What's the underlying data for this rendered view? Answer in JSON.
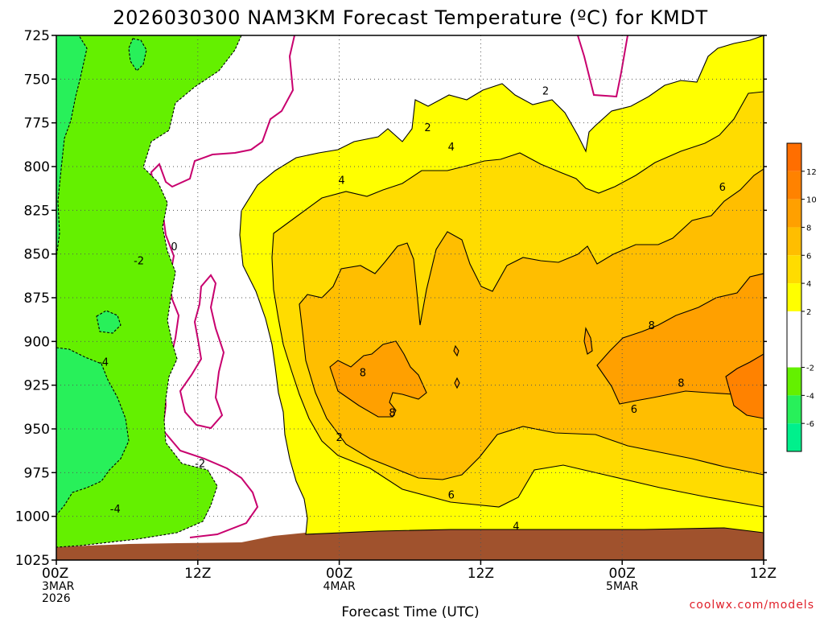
{
  "chart_data": {
    "type": "heatmap",
    "title": "2026030300 NAM3KM Forecast Temperature (ºC) for KMDT",
    "xlabel": "Forecast Time (UTC)",
    "ylabel": "",
    "y_axis": {
      "unit": "hPa",
      "range": [
        725,
        1025
      ],
      "inverted": true,
      "ticks": [
        "725",
        "750",
        "775",
        "800",
        "825",
        "850",
        "875",
        "900",
        "925",
        "950",
        "975",
        "1000",
        "1025"
      ]
    },
    "x_axis": {
      "range_hours": [
        0,
        60
      ],
      "ticks": [
        {
          "hour": 0,
          "lines": [
            "00Z",
            "3MAR",
            "2026"
          ]
        },
        {
          "hour": 12,
          "lines": [
            "12Z"
          ]
        },
        {
          "hour": 24,
          "lines": [
            "00Z",
            "4MAR"
          ]
        },
        {
          "hour": 36,
          "lines": [
            "12Z"
          ]
        },
        {
          "hour": 48,
          "lines": [
            "00Z",
            "5MAR"
          ]
        },
        {
          "hour": 60,
          "lines": [
            "12Z"
          ]
        }
      ]
    },
    "grid": true,
    "colorbar": {
      "placement": "right",
      "bins": [
        {
          "from": -8,
          "to": -6,
          "color": "#00f08c"
        },
        {
          "from": -6,
          "to": -4,
          "color": "#28f05a"
        },
        {
          "from": -4,
          "to": -2,
          "color": "#64f000"
        },
        {
          "from": -2,
          "to": 0,
          "color": "#ffffff"
        },
        {
          "from": 0,
          "to": 2,
          "color": "#ffffff"
        },
        {
          "from": 2,
          "to": 4,
          "color": "#ffff00"
        },
        {
          "from": 4,
          "to": 6,
          "color": "#ffdc00"
        },
        {
          "from": 6,
          "to": 8,
          "color": "#ffbe00"
        },
        {
          "from": 8,
          "to": 10,
          "color": "#ffa000"
        },
        {
          "from": 10,
          "to": 12,
          "color": "#ff8200"
        },
        {
          "from": 12,
          "to": 14,
          "color": "#ff6e00"
        }
      ],
      "tick_labels": [
        "12",
        "10",
        "8",
        "6",
        "4",
        "2",
        "-2",
        "-4",
        "-6"
      ]
    },
    "ground_color": "#a0522d",
    "zero_contour_color": "#c8006e",
    "contour_labels": [
      {
        "text": "2",
        "hour": 31.5,
        "p": 778
      },
      {
        "text": "2",
        "hour": 41.5,
        "p": 757
      },
      {
        "text": "4",
        "hour": 33.5,
        "p": 789
      },
      {
        "text": "4",
        "hour": 24.2,
        "p": 808
      },
      {
        "text": "6",
        "hour": 56.5,
        "p": 812
      },
      {
        "text": "0",
        "hour": 10,
        "p": 846
      },
      {
        "text": "-2",
        "hour": 7,
        "p": 854
      },
      {
        "text": "8",
        "hour": 26,
        "p": 918
      },
      {
        "text": "8",
        "hour": 28.5,
        "p": 941
      },
      {
        "text": "8",
        "hour": 50.5,
        "p": 891
      },
      {
        "text": "8",
        "hour": 53,
        "p": 924
      },
      {
        "text": "6",
        "hour": 49,
        "p": 939
      },
      {
        "text": "6",
        "hour": 33.5,
        "p": 988
      },
      {
        "text": "4",
        "hour": 39,
        "p": 1006
      },
      {
        "text": "2",
        "hour": 24,
        "p": 955
      },
      {
        "text": "-4",
        "hour": 4,
        "p": 912
      },
      {
        "text": "-2",
        "hour": 12.2,
        "p": 970
      },
      {
        "text": "-4",
        "hour": 5,
        "p": 996
      }
    ]
  },
  "credit": "coolwx.com/models"
}
